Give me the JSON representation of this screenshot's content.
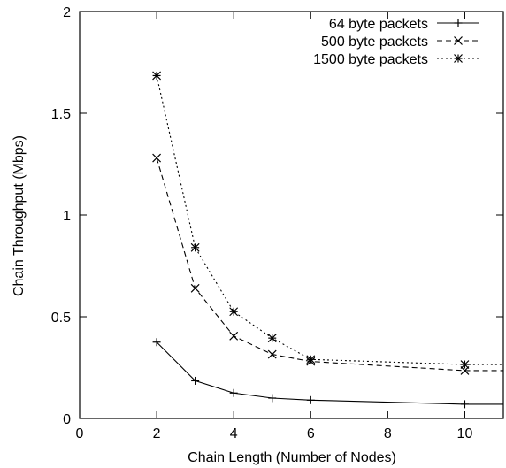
{
  "chart_data": {
    "type": "line",
    "xlabel": "Chain Length (Number of Nodes)",
    "ylabel": "Chain Throughput (Mbps)",
    "xlim": [
      0,
      11
    ],
    "ylim": [
      0,
      2
    ],
    "xticks": [
      0,
      2,
      4,
      6,
      8,
      10
    ],
    "yticks": [
      0,
      0.5,
      1,
      1.5,
      2
    ],
    "ytick_labels": [
      "0",
      "0.5",
      "1",
      "1.5",
      "2"
    ],
    "grid": false,
    "legend_position": "top-right",
    "series": [
      {
        "name": "64 byte packets",
        "marker": "plus",
        "line_style": "solid",
        "x": [
          2,
          3,
          4,
          5,
          6,
          10,
          11
        ],
        "y": [
          0.375,
          0.185,
          0.125,
          0.1,
          0.09,
          0.07,
          0.07
        ]
      },
      {
        "name": "500 byte packets",
        "marker": "cross",
        "line_style": "dashed",
        "x": [
          2,
          3,
          4,
          5,
          6,
          10,
          11
        ],
        "y": [
          1.28,
          0.64,
          0.405,
          0.315,
          0.28,
          0.235,
          0.235
        ]
      },
      {
        "name": "1500 byte packets",
        "marker": "star",
        "line_style": "dotted",
        "x": [
          2,
          3,
          4,
          5,
          6,
          10,
          11
        ],
        "y": [
          1.685,
          0.84,
          0.525,
          0.395,
          0.29,
          0.265,
          0.265
        ]
      }
    ]
  }
}
